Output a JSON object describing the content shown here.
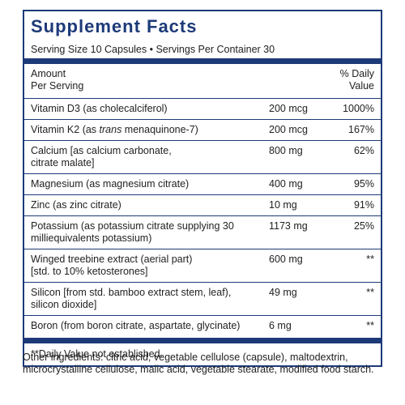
{
  "label": {
    "title": "Supplement Facts",
    "serving": "Serving Size 10 Capsules • Servings Per Container 30",
    "header": {
      "amount": [
        "Amount",
        "Per Serving"
      ],
      "dv": [
        "% Daily",
        "Value"
      ]
    },
    "rows": [
      {
        "name": [
          "Vitamin D3 (as cholecalciferol)"
        ],
        "amount": "200 mcg",
        "dv": "1000%"
      },
      {
        "name_before": "Vitamin K2 (as ",
        "name_italic": "trans",
        "name_after": " menaquinone-7)",
        "amount": "200 mcg",
        "dv": "167%"
      },
      {
        "name": [
          "Calcium [as calcium carbonate,",
          "citrate malate]"
        ],
        "amount": "800 mg",
        "dv": "62%"
      },
      {
        "name": [
          "Magnesium (as magnesium citrate)"
        ],
        "amount": "400 mg",
        "dv": "95%"
      },
      {
        "name": [
          "Zinc (as zinc citrate)"
        ],
        "amount": "10 mg",
        "dv": "91%"
      },
      {
        "name": [
          "Potassium (as potassium citrate supplying 30",
          "milliequivalents potassium)"
        ],
        "amount": "1173 mg",
        "dv": "25%"
      },
      {
        "name": [
          "Winged treebine extract (aerial part)",
          "[std. to 10% ketosterones]"
        ],
        "amount": "600 mg",
        "dv": "**"
      },
      {
        "name": [
          "Silicon [from std. bamboo extract stem, leaf),",
          "silicon dioxide]"
        ],
        "amount": "49 mg",
        "dv": "**"
      },
      {
        "name": [
          "Boron (from boron citrate, aspartate, glycinate)"
        ],
        "amount": "6 mg",
        "dv": "**"
      }
    ],
    "footnote": "**Daily Value not established."
  },
  "other_ingredients": "Other ingredients: citric acid, vegetable cellulose (capsule), maltodextrin, microcrystalline cellulose, malic acid, vegetable stearate, modified food starch."
}
